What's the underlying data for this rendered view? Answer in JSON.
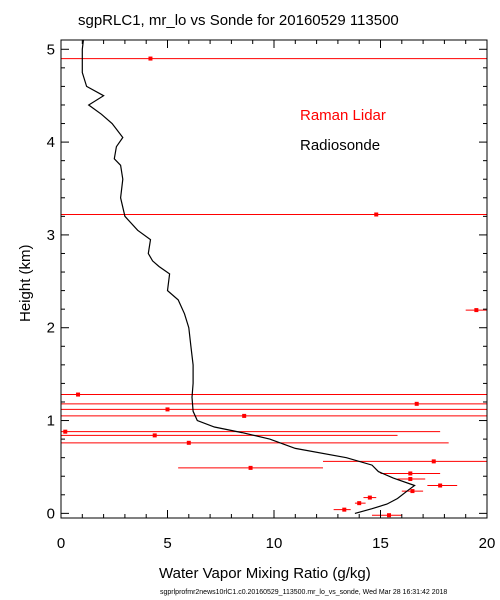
{
  "chart_data": {
    "type": "scatter",
    "title": "sgpRLC1, mr_lo vs Sonde for 20160529 113500",
    "xlabel": "Water Vapor Mixing Ratio (g/kg)",
    "ylabel": "Height (km)",
    "xlim": [
      0,
      20
    ],
    "ylim": [
      -0.05,
      5.1
    ],
    "xticks": [
      0,
      5,
      10,
      15,
      20
    ],
    "yticks": [
      0,
      1,
      2,
      3,
      4,
      5
    ],
    "legend": {
      "placement": "upper-right",
      "entries": [
        {
          "label": "Raman Lidar",
          "color": "#ff0000"
        },
        {
          "label": "Radiosonde",
          "color": "#000000"
        }
      ]
    },
    "footer": "sgprlprofmr2news10rlC1.c0.20160529_113500.mr_lo_vs_sonde, Wed Mar 28 16:31:42 2018",
    "series": [
      {
        "name": "Raman Lidar",
        "color": "#ff0000",
        "points": [
          {
            "x": 4.2,
            "y": 4.9,
            "xerr": [
              0,
              20
            ]
          },
          {
            "x": 14.8,
            "y": 3.22,
            "xerr": [
              0,
              20
            ]
          },
          {
            "x": 19.5,
            "y": 2.19,
            "xerr": [
              19,
              20
            ]
          },
          {
            "x": 0.8,
            "y": 1.28,
            "xerr": [
              0,
              20
            ]
          },
          {
            "x": 16.7,
            "y": 1.18,
            "xerr": [
              0,
              20
            ]
          },
          {
            "x": 5.0,
            "y": 1.12,
            "xerr": [
              0,
              20
            ]
          },
          {
            "x": 8.6,
            "y": 1.05,
            "xerr": [
              0,
              20
            ]
          },
          {
            "x": 0.2,
            "y": 0.88,
            "xerr": [
              0,
              17.8
            ]
          },
          {
            "x": 4.4,
            "y": 0.84,
            "xerr": [
              0,
              15.8
            ]
          },
          {
            "x": 6.0,
            "y": 0.76,
            "xerr": [
              0,
              18.2
            ]
          },
          {
            "x": 17.5,
            "y": 0.56,
            "xerr": [
              12.3,
              20
            ]
          },
          {
            "x": 8.9,
            "y": 0.49,
            "xerr": [
              5.5,
              12.3
            ]
          },
          {
            "x": 16.4,
            "y": 0.43,
            "xerr": [
              15.0,
              17.8
            ]
          },
          {
            "x": 16.4,
            "y": 0.37,
            "xerr": [
              15.8,
              17.1
            ]
          },
          {
            "x": 17.8,
            "y": 0.3,
            "xerr": [
              17.2,
              18.6
            ]
          },
          {
            "x": 16.5,
            "y": 0.24,
            "xerr": [
              16.0,
              17.0
            ]
          },
          {
            "x": 14.5,
            "y": 0.17,
            "xerr": [
              14.2,
              14.8
            ]
          },
          {
            "x": 14.0,
            "y": 0.11,
            "xerr": [
              13.8,
              14.3
            ]
          },
          {
            "x": 13.3,
            "y": 0.04,
            "xerr": [
              12.8,
              13.6
            ]
          },
          {
            "x": 15.4,
            "y": -0.02,
            "xerr": [
              14.6,
              16.0
            ]
          }
        ]
      },
      {
        "name": "Radiosonde",
        "color": "#000000",
        "points": [
          {
            "x": 13.8,
            "y": 0.0
          },
          {
            "x": 14.6,
            "y": 0.05
          },
          {
            "x": 15.3,
            "y": 0.1
          },
          {
            "x": 15.8,
            "y": 0.16
          },
          {
            "x": 16.3,
            "y": 0.25
          },
          {
            "x": 16.6,
            "y": 0.3
          },
          {
            "x": 15.6,
            "y": 0.38
          },
          {
            "x": 14.9,
            "y": 0.45
          },
          {
            "x": 14.6,
            "y": 0.52
          },
          {
            "x": 13.4,
            "y": 0.6
          },
          {
            "x": 11.0,
            "y": 0.7
          },
          {
            "x": 9.8,
            "y": 0.8
          },
          {
            "x": 8.5,
            "y": 0.87
          },
          {
            "x": 7.2,
            "y": 0.93
          },
          {
            "x": 6.4,
            "y": 1.0
          },
          {
            "x": 6.2,
            "y": 1.1
          },
          {
            "x": 6.15,
            "y": 1.25
          },
          {
            "x": 6.2,
            "y": 1.4
          },
          {
            "x": 6.2,
            "y": 1.6
          },
          {
            "x": 6.1,
            "y": 1.8
          },
          {
            "x": 6.0,
            "y": 2.0
          },
          {
            "x": 5.8,
            "y": 2.15
          },
          {
            "x": 5.5,
            "y": 2.3
          },
          {
            "x": 5.0,
            "y": 2.4
          },
          {
            "x": 5.1,
            "y": 2.58
          },
          {
            "x": 4.6,
            "y": 2.66
          },
          {
            "x": 4.3,
            "y": 2.72
          },
          {
            "x": 4.1,
            "y": 2.8
          },
          {
            "x": 4.2,
            "y": 2.95
          },
          {
            "x": 3.6,
            "y": 3.05
          },
          {
            "x": 3.0,
            "y": 3.2
          },
          {
            "x": 2.8,
            "y": 3.4
          },
          {
            "x": 2.9,
            "y": 3.6
          },
          {
            "x": 2.8,
            "y": 3.75
          },
          {
            "x": 2.5,
            "y": 3.82
          },
          {
            "x": 2.6,
            "y": 3.95
          },
          {
            "x": 2.9,
            "y": 4.05
          },
          {
            "x": 2.4,
            "y": 4.2
          },
          {
            "x": 1.9,
            "y": 4.3
          },
          {
            "x": 1.3,
            "y": 4.4
          },
          {
            "x": 2.0,
            "y": 4.5
          },
          {
            "x": 1.2,
            "y": 4.6
          },
          {
            "x": 1.0,
            "y": 4.75
          },
          {
            "x": 1.0,
            "y": 5.0
          },
          {
            "x": 1.05,
            "y": 5.1
          }
        ]
      }
    ]
  }
}
